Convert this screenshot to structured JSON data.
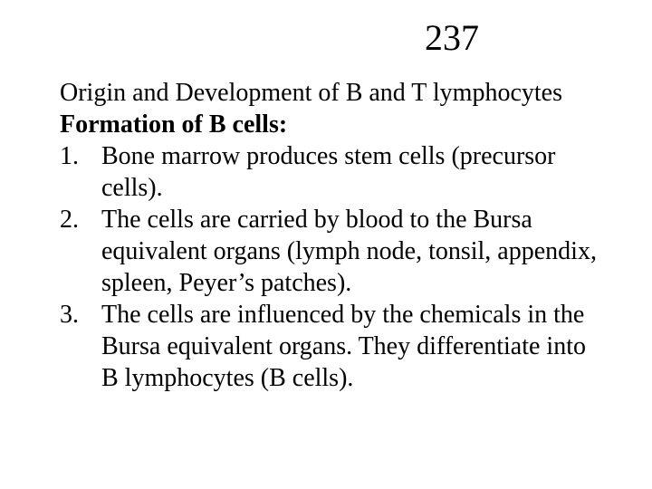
{
  "page_number": "237",
  "heading": "Origin and Development of B and T lymphocytes",
  "subheading": "Formation of B cells:",
  "items": [
    {
      "num": "1.",
      "text": "Bone marrow produces stem cells (precursor cells)."
    },
    {
      "num": "2.",
      "text": "The cells are carried by blood to the Bursa equivalent organs (lymph node, tonsil, appendix, spleen, Peyer’s patches)."
    },
    {
      "num": "3.",
      "text": "The cells are influenced by the chemicals in the Bursa equivalent organs.  They differentiate into B lymphocytes (B cells)."
    }
  ],
  "colors": {
    "background": "#ffffff",
    "text": "#000000"
  },
  "typography": {
    "page_number_fontsize_pt": 40,
    "body_fontsize_pt": 28,
    "font_family": "Times New Roman"
  }
}
